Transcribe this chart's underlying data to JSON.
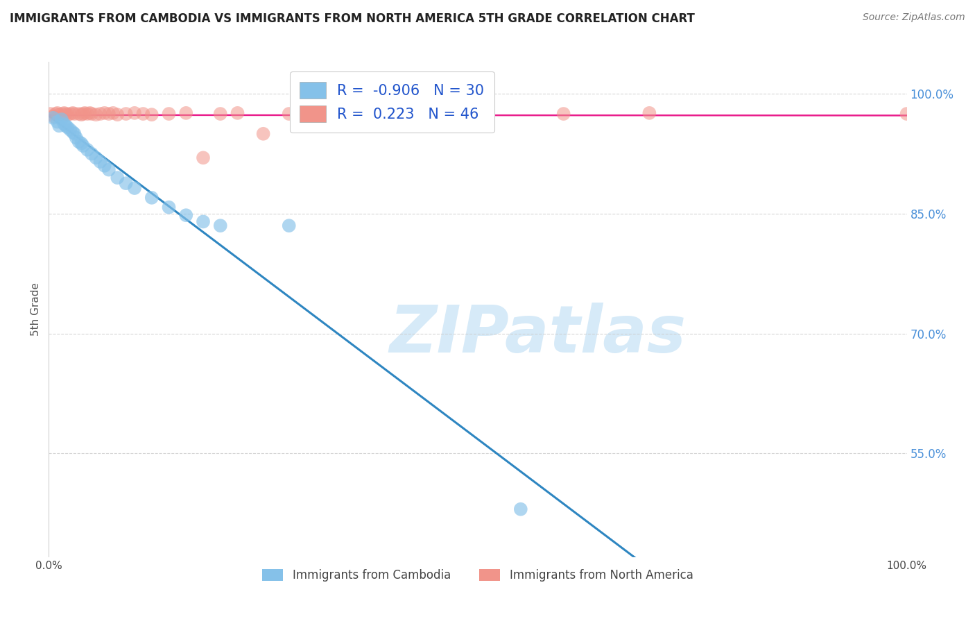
{
  "title": "IMMIGRANTS FROM CAMBODIA VS IMMIGRANTS FROM NORTH AMERICA 5TH GRADE CORRELATION CHART",
  "source": "Source: ZipAtlas.com",
  "ylabel": "5th Grade",
  "yticks": [
    0.55,
    0.7,
    0.85,
    1.0
  ],
  "ytick_labels": [
    "55.0%",
    "70.0%",
    "85.0%",
    "100.0%"
  ],
  "xmin": 0.0,
  "xmax": 1.0,
  "ymin": 0.42,
  "ymax": 1.04,
  "blue_R": -0.906,
  "blue_N": 30,
  "pink_R": 0.223,
  "pink_N": 46,
  "blue_color": "#85C1E9",
  "pink_color": "#F1948A",
  "blue_line_color": "#2E86C1",
  "pink_line_color": "#E91E8C",
  "watermark_text": "ZIPatlas",
  "watermark_color": "#D6EAF8",
  "legend_label_blue": "Immigrants from Cambodia",
  "legend_label_pink": "Immigrants from North America",
  "blue_dots_x": [
    0.005,
    0.01,
    0.012,
    0.015,
    0.018,
    0.02,
    0.022,
    0.025,
    0.028,
    0.03,
    0.032,
    0.035,
    0.038,
    0.04,
    0.045,
    0.05,
    0.055,
    0.06,
    0.065,
    0.07,
    0.08,
    0.09,
    0.1,
    0.12,
    0.14,
    0.16,
    0.18,
    0.2,
    0.28,
    0.55
  ],
  "blue_dots_y": [
    0.97,
    0.965,
    0.96,
    0.968,
    0.962,
    0.96,
    0.958,
    0.955,
    0.952,
    0.95,
    0.945,
    0.94,
    0.938,
    0.935,
    0.93,
    0.925,
    0.92,
    0.915,
    0.91,
    0.905,
    0.895,
    0.888,
    0.882,
    0.87,
    0.858,
    0.848,
    0.84,
    0.835,
    0.835,
    0.48
  ],
  "pink_dots_x": [
    0.002,
    0.005,
    0.008,
    0.01,
    0.012,
    0.015,
    0.018,
    0.02,
    0.022,
    0.025,
    0.028,
    0.03,
    0.035,
    0.038,
    0.04,
    0.042,
    0.045,
    0.048,
    0.05,
    0.055,
    0.06,
    0.065,
    0.07,
    0.075,
    0.08,
    0.09,
    0.1,
    0.11,
    0.12,
    0.14,
    0.16,
    0.18,
    0.2,
    0.22,
    0.25,
    0.28,
    0.3,
    0.32,
    0.34,
    0.36,
    0.4,
    0.45,
    0.5,
    0.6,
    0.7,
    1.0
  ],
  "pink_dots_y": [
    0.975,
    0.972,
    0.975,
    0.976,
    0.974,
    0.975,
    0.976,
    0.975,
    0.974,
    0.975,
    0.976,
    0.975,
    0.975,
    0.974,
    0.975,
    0.976,
    0.975,
    0.976,
    0.975,
    0.974,
    0.975,
    0.976,
    0.975,
    0.976,
    0.974,
    0.975,
    0.976,
    0.975,
    0.974,
    0.975,
    0.976,
    0.92,
    0.975,
    0.976,
    0.95,
    0.975,
    0.976,
    0.975,
    0.976,
    0.975,
    0.976,
    0.975,
    0.976,
    0.975,
    0.976,
    0.975
  ]
}
